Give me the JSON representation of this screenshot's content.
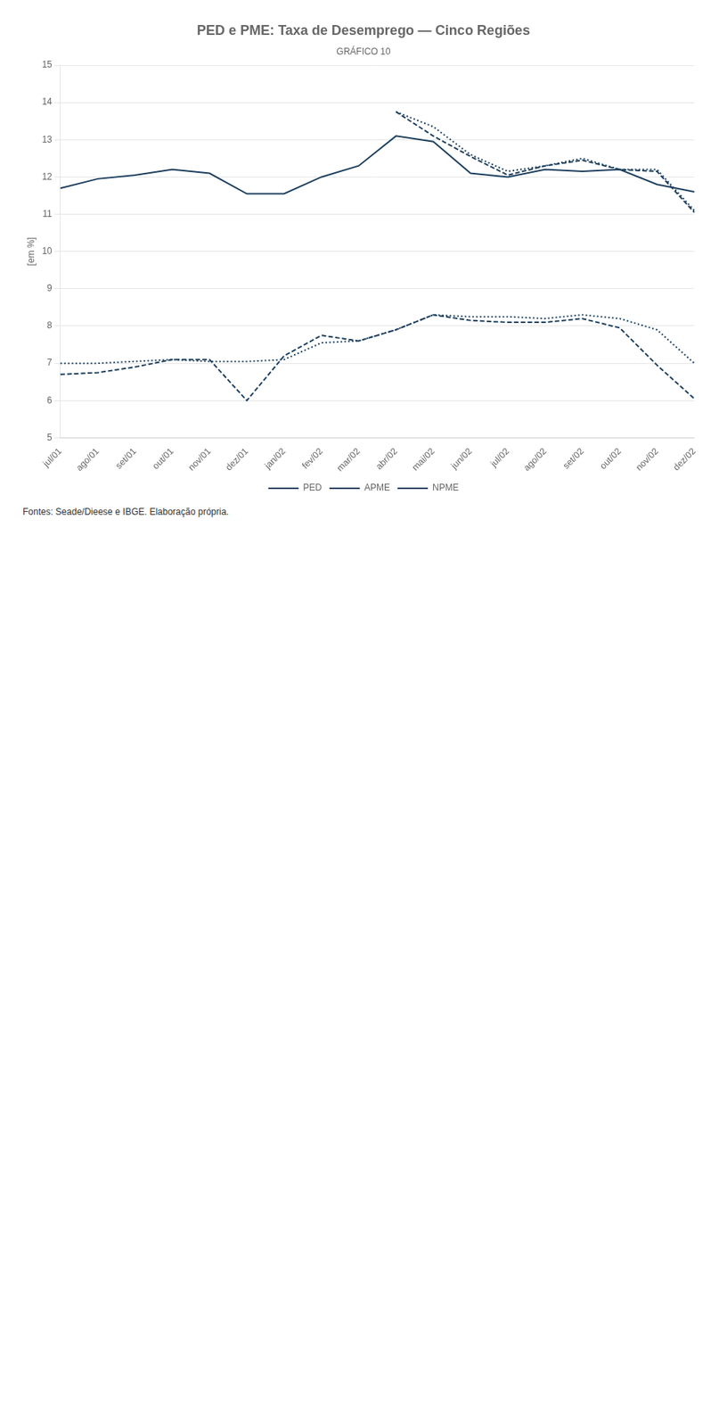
{
  "chart_data": {
    "type": "line",
    "title": "PED e PME: Taxa de Desemprego — Cinco Regiões",
    "subtitle": "GRÁFICO 10",
    "ylabel": "[em %]",
    "annotations": [
      "Fontes: Seade/Dieese e IBGE. Elaboração própria."
    ],
    "categories": [
      "jul/01",
      "ago/01",
      "set/01",
      "out/01",
      "nov/01",
      "dez/01",
      "jan/02",
      "fev/02",
      "mar/02",
      "abr/02",
      "mai/02",
      "jun/02",
      "jul/02",
      "ago/02",
      "set/02",
      "out/02",
      "nov/02",
      "dez/02"
    ],
    "series": [
      {
        "name": "PED",
        "color": "#1c3f5e",
        "line_style": "solid",
        "values": [
          11.7,
          11.95,
          12.05,
          12.2,
          12.1,
          11.55,
          11.55,
          12.0,
          12.3,
          13.1,
          12.95,
          12.1,
          12.0,
          12.2,
          12.15,
          12.2,
          11.8,
          11.6
        ]
      },
      {
        "name": "APME",
        "color": "#1c3f5e",
        "line_style": "dashed",
        "values": [
          null,
          null,
          null,
          null,
          null,
          null,
          null,
          null,
          null,
          13.75,
          13.1,
          12.55,
          12.05,
          12.3,
          12.45,
          12.2,
          12.15,
          11.05
        ]
      },
      {
        "name": "NPME",
        "color": "#1c3f5e",
        "line_style": "dotted",
        "values": [
          null,
          null,
          null,
          null,
          null,
          null,
          null,
          null,
          null,
          13.75,
          13.35,
          12.6,
          12.15,
          12.3,
          12.5,
          12.2,
          12.2,
          11.1
        ]
      },
      {
        "name": "APME",
        "color": "#1c3f5e",
        "line_style": "dashed",
        "values": [
          6.7,
          6.75,
          6.9,
          7.1,
          7.1,
          6.0,
          7.2,
          7.75,
          7.6,
          7.9,
          8.3,
          8.15,
          8.1,
          8.1,
          8.2,
          7.95,
          6.95,
          6.05
        ]
      },
      {
        "name": "NPME",
        "color": "#1c3f5e",
        "line_style": "dotted",
        "values": [
          7.0,
          7.0,
          7.05,
          7.1,
          7.05,
          7.05,
          7.1,
          7.55,
          7.6,
          7.9,
          8.3,
          8.25,
          8.25,
          8.2,
          8.3,
          8.2,
          7.9,
          7.0
        ]
      }
    ],
    "ylim": [
      5,
      15
    ],
    "yticks": [
      5,
      6,
      7,
      8,
      9,
      10,
      11,
      12,
      13,
      14,
      15
    ],
    "grid": "y",
    "legend": "bottom"
  }
}
